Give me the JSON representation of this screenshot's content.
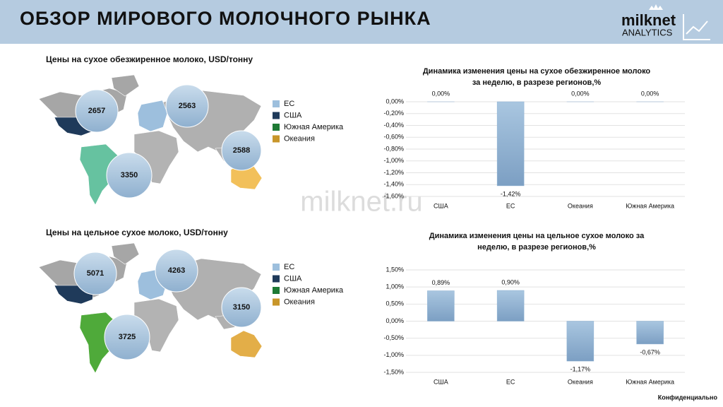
{
  "header": {
    "title": "ОБЗОР МИРОВОГО МОЛОЧНОГО РЫНКА",
    "logo": {
      "name": "milknet",
      "subtitle": "ANALYTICS"
    }
  },
  "watermark": "milknet.ru",
  "footer": "Конфиденциально",
  "maps": [
    {
      "title": "Цены на сухое обезжиренное молоко, USD/тонну",
      "legend": [
        {
          "name": "ЕС",
          "color": "#9dbfdd"
        },
        {
          "name": "США",
          "color": "#1f3a5a"
        },
        {
          "name": "Южная Америка",
          "color": "#1e7a35"
        },
        {
          "name": "Океания",
          "color": "#c8962a"
        }
      ],
      "bubbles": [
        2657,
        2563,
        2588,
        3350
      ]
    },
    {
      "title": "Цены на цельное сухое молоко, USD/тонну",
      "legend": [
        {
          "name": "ЕС",
          "color": "#9dbfdd"
        },
        {
          "name": "США",
          "color": "#1f3a5a"
        },
        {
          "name": "Южная Америка",
          "color": "#1e7a35"
        },
        {
          "name": "Океания",
          "color": "#c8962a"
        }
      ],
      "bubbles": [
        5071,
        4263,
        3150,
        3725
      ]
    }
  ],
  "chart_data": [
    {
      "type": "bar",
      "title": [
        "Динамика изменения цены на сухое обезжиренное молоко",
        "за неделю, в разрезе регионов,%"
      ],
      "categories": [
        "США",
        "ЕС",
        "Океания",
        "Южная Америка"
      ],
      "values": [
        0,
        -1.42,
        0,
        0
      ],
      "value_labels": [
        "0,00%",
        "-1,42%",
        "0,00%",
        "0,00%"
      ],
      "color": "#8fb2d3",
      "ylim": [
        -1.6,
        0
      ],
      "yticks": [
        {
          "value": 0,
          "label": "0,00%"
        },
        {
          "value": -0.2,
          "label": "-0,20%"
        },
        {
          "value": -0.4,
          "label": "-0,40%"
        },
        {
          "value": -0.6,
          "label": "-0,60%"
        },
        {
          "value": -0.8,
          "label": "-0,80%"
        },
        {
          "value": -1.0,
          "label": "-1,00%"
        },
        {
          "value": -1.2,
          "label": "-1,20%"
        },
        {
          "value": -1.4,
          "label": "-1,40%"
        },
        {
          "value": -1.6,
          "label": "-1,60%"
        }
      ],
      "grid": true
    },
    {
      "type": "bar",
      "title": [
        "Динамика изменения цены на цельное сухое молоко за",
        "неделю, в разрезе регионов,%"
      ],
      "categories": [
        "США",
        "ЕС",
        "Океания",
        "Южная Америка"
      ],
      "values": [
        0.89,
        0.9,
        -1.17,
        -0.67
      ],
      "value_labels": [
        "0,89%",
        "0,90%",
        "-1,17%",
        "-0,67%"
      ],
      "color": "#8fb2d3",
      "ylim": [
        -1.5,
        1.5
      ],
      "yticks": [
        {
          "value": 1.5,
          "label": "1,50%"
        },
        {
          "value": 1.0,
          "label": "1,00%"
        },
        {
          "value": 0.5,
          "label": "0,50%"
        },
        {
          "value": 0,
          "label": "0,00%"
        },
        {
          "value": -0.5,
          "label": "-0,50%"
        },
        {
          "value": -1.0,
          "label": "-1,00%"
        },
        {
          "value": -1.5,
          "label": "-1,50%"
        }
      ],
      "grid": true
    }
  ]
}
